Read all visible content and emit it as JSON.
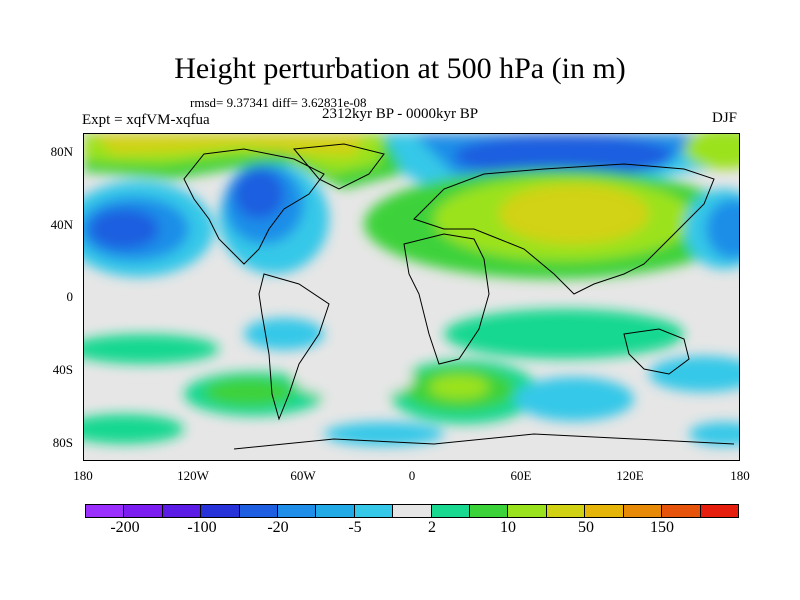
{
  "title": "Height perturbation at 500 hPa (in m)",
  "stats": "rmsd= 9.37341 diff= 3.62831e-08",
  "experiment": "Expt = xqfVM-xqfua",
  "period": "2312kyr BP - 0000kyr BP",
  "season": "DJF",
  "latitude_labels": [
    "80N",
    "40N",
    "0",
    "40S",
    "80S"
  ],
  "longitude_labels": [
    "180",
    "120W",
    "60W",
    "0",
    "60E",
    "120E",
    "180"
  ],
  "colorbar": {
    "colors": [
      "#9b2fff",
      "#7b1cf0",
      "#5b1ce6",
      "#2733d8",
      "#1d5fe0",
      "#1f8ee8",
      "#22aae6",
      "#35c8e8",
      "#e6e6e6",
      "#19d890",
      "#3cd23a",
      "#9be21e",
      "#d2d214",
      "#e6b50a",
      "#e68a08",
      "#e6530a",
      "#e61e0e"
    ],
    "labels": [
      "-200",
      "-100",
      "-20",
      "-5",
      "2",
      "10",
      "50",
      "150"
    ]
  }
}
